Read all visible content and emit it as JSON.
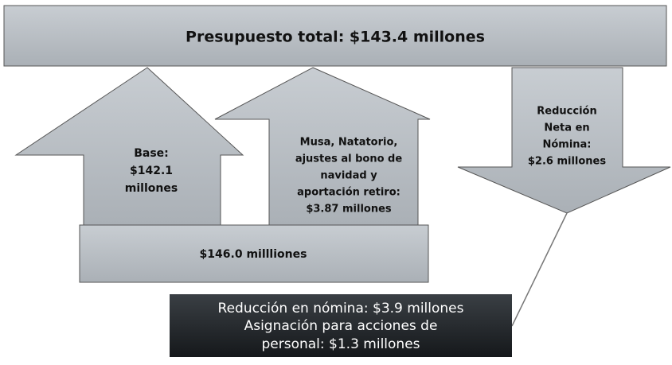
{
  "total": {
    "label": "Presupuesto total: $143.4 millones"
  },
  "base_arrow": {
    "lines": [
      "Base:",
      "$142.1",
      "millones"
    ]
  },
  "additions_arrow": {
    "lines": [
      "Musa, Natatorio,",
      "ajustes al bono de",
      "navidad y",
      "aportación retiro:",
      "$3.87 millones"
    ]
  },
  "reduction_arrow": {
    "lines": [
      "Reducción",
      "Neta en",
      "Nómina:",
      "$2.6 millones"
    ]
  },
  "subtotal": {
    "label": "$146.0 millliones"
  },
  "callout": {
    "lines": [
      "Reducción en nómina: $3.9 millones",
      "Asignación para acciones de",
      "personal: $1.3 millones"
    ]
  }
}
